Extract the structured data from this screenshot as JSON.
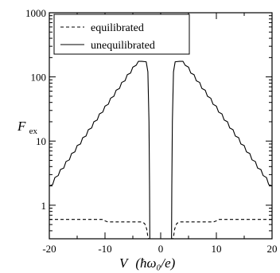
{
  "chart_data": {
    "type": "line",
    "xlabel": "V (ħω₀/e)",
    "ylabel": "F_ex",
    "xlim": [
      -20,
      20
    ],
    "ylim": [
      0.3,
      1000
    ],
    "yscale": "log",
    "x_ticks": [
      -20,
      -10,
      0,
      10,
      20
    ],
    "x_tick_labels": [
      "-20",
      "-10",
      "0",
      "10",
      "20"
    ],
    "y_ticks": [
      1,
      10,
      100,
      1000
    ],
    "y_tick_labels": [
      "1",
      "10",
      "100",
      "1000"
    ],
    "legend_position": "top-left",
    "series": [
      {
        "name": "equilibrated",
        "style": "dashed",
        "x": [
          -20,
          -10.5,
          -10,
          -9.5,
          -3.6,
          -3.2,
          -2.9,
          -2.7,
          -2.5,
          -2.3,
          -2.15,
          2.15,
          2.3,
          2.5,
          2.7,
          2.9,
          3.2,
          3.6,
          9.5,
          10,
          10.5,
          20
        ],
        "y": [
          0.6,
          0.6,
          0.57,
          0.55,
          0.55,
          0.54,
          0.52,
          0.48,
          0.42,
          0.32,
          0.3,
          0.3,
          0.32,
          0.42,
          0.48,
          0.52,
          0.54,
          0.55,
          0.55,
          0.57,
          0.6,
          0.6
        ]
      },
      {
        "name": "unequilibrated",
        "style": "solid",
        "x": [
          -20,
          -19.4,
          -19,
          -18.4,
          -18,
          -17.4,
          -17,
          -16.4,
          -16,
          -15.4,
          -15,
          -14.4,
          -14,
          -13.4,
          -13,
          -12.4,
          -12,
          -11.4,
          -11,
          -10.4,
          -10,
          -9.4,
          -9,
          -8.4,
          -8,
          -7.4,
          -7,
          -6.4,
          -6,
          -5.4,
          -5,
          -4.4,
          -4,
          -3.4,
          -2.6,
          -2.3,
          -2.1,
          -2.0,
          -1.95,
          1.95,
          2.0,
          2.1,
          2.3,
          2.6,
          3.4,
          4,
          4.4,
          5,
          5.4,
          6,
          6.4,
          7,
          7.4,
          8,
          8.4,
          9,
          9.4,
          10,
          10.4,
          11,
          11.4,
          12,
          12.4,
          13,
          13.4,
          14,
          14.4,
          15,
          15.4,
          16,
          16.4,
          17,
          17.4,
          18,
          18.4,
          19,
          19.4,
          20
        ],
        "y": [
          2.0,
          2.1,
          2.7,
          2.9,
          3.6,
          3.8,
          4.8,
          5.1,
          6.4,
          6.8,
          8.5,
          9.0,
          11.3,
          12.0,
          15.0,
          16.0,
          20.0,
          21.3,
          26.5,
          28.3,
          35.0,
          37.5,
          46.5,
          50.0,
          62.0,
          66.0,
          82.0,
          87.0,
          108.0,
          115.0,
          142.0,
          152.0,
          175.0,
          175.0,
          172.0,
          120.0,
          20.0,
          2.0,
          0.3,
          0.3,
          2.0,
          20.0,
          120.0,
          172.0,
          175.0,
          175.0,
          152.0,
          142.0,
          115.0,
          108.0,
          87.0,
          82.0,
          66.0,
          62.0,
          50.0,
          46.5,
          37.5,
          35.0,
          28.3,
          26.5,
          21.3,
          20.0,
          16.0,
          15.0,
          12.0,
          11.3,
          9.0,
          8.5,
          6.8,
          6.4,
          5.1,
          4.8,
          3.8,
          3.6,
          2.9,
          2.7,
          2.1,
          2.0
        ]
      }
    ]
  },
  "labels": {
    "ylabel_main": "F",
    "ylabel_sub": "ex",
    "xlabel_v": "V",
    "xlabel_units": "(ħω₀/e)"
  }
}
